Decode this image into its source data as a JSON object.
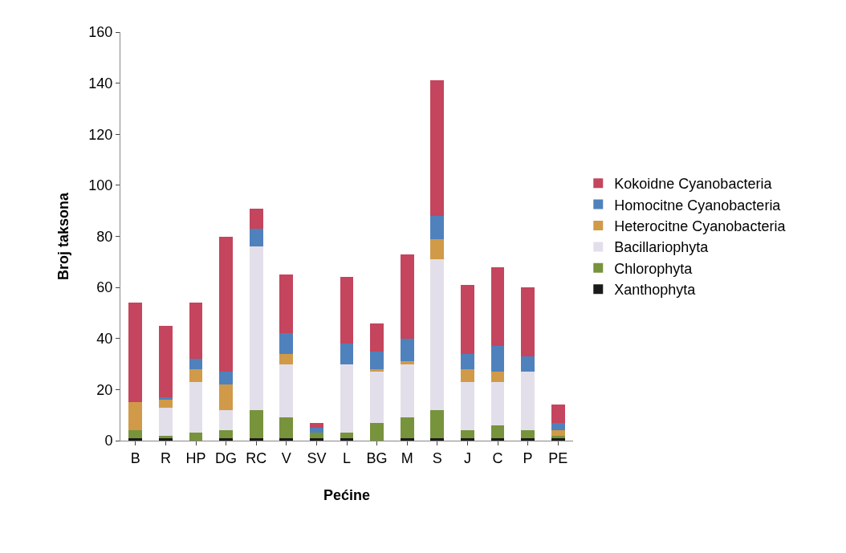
{
  "chart_data": {
    "type": "bar",
    "stacked": true,
    "xlabel": "Pećine",
    "ylabel": "Broj taksona",
    "categories": [
      "B",
      "R",
      "HP",
      "DG",
      "RC",
      "V",
      "SV",
      "L",
      "BG",
      "M",
      "S",
      "J",
      "C",
      "P",
      "PE"
    ],
    "ylim": [
      0,
      160
    ],
    "yticks": [
      0,
      20,
      40,
      60,
      80,
      100,
      120,
      140,
      160
    ],
    "grid": false,
    "legend": "right",
    "series": [
      {
        "name": "Xanthophyta",
        "color": "#1a1a1a",
        "values": [
          1,
          1,
          0,
          1,
          1,
          1,
          1,
          1,
          0,
          1,
          1,
          1,
          1,
          1,
          1
        ]
      },
      {
        "name": "Chlorophyta",
        "color": "#77933c",
        "values": [
          3,
          1,
          3,
          3,
          11,
          8,
          2,
          2,
          7,
          8,
          11,
          3,
          5,
          3,
          1
        ]
      },
      {
        "name": "Bacillariophyta",
        "color": "#e3dfea",
        "values": [
          0,
          11,
          20,
          8,
          64,
          21,
          0,
          27,
          20,
          21,
          59,
          19,
          17,
          23,
          0
        ]
      },
      {
        "name": "Heterocitne Cyanobacteria",
        "color": "#d19a48",
        "values": [
          11,
          3,
          5,
          10,
          0,
          4,
          0,
          0,
          1,
          1,
          8,
          5,
          4,
          0,
          2
        ]
      },
      {
        "name": "Homocitne Cyanobacteria",
        "color": "#4f81bd",
        "values": [
          0,
          1,
          4,
          5,
          7,
          8,
          2,
          8,
          7,
          9,
          9,
          6,
          10,
          6,
          3
        ]
      },
      {
        "name": "Kokoidne Cyanobacteria",
        "color": "#c4455d",
        "values": [
          39,
          28,
          22,
          53,
          8,
          23,
          2,
          26,
          11,
          33,
          53,
          27,
          31,
          27,
          7
        ]
      }
    ]
  }
}
